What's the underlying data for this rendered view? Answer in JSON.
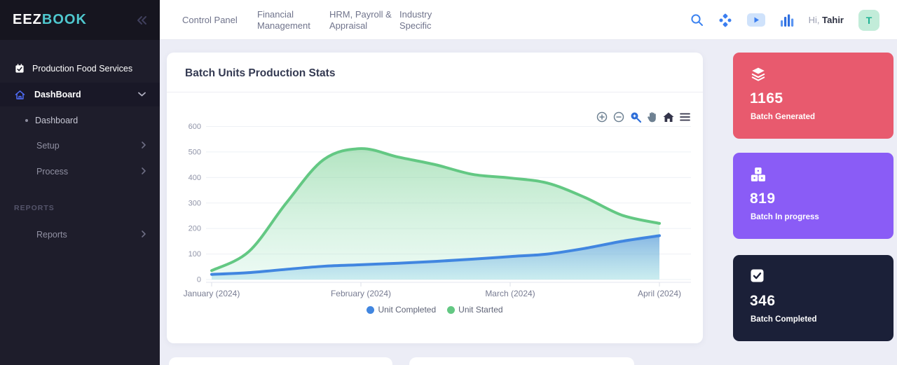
{
  "brand": {
    "name_primary": "EEZ",
    "name_accent": "BOOK",
    "accent_color": "#4fc8cf"
  },
  "sidebar": {
    "service_label": "Production Food Services",
    "menu": {
      "dashboard_parent": "DashBoard",
      "dashboard_child": "Dashboard",
      "setup": "Setup",
      "process": "Process",
      "section": "REPORTS",
      "reports": "Reports"
    }
  },
  "topbar": {
    "nav": [
      "Control Panel",
      "Financial Management",
      "HRM, Payroll & Appraisal",
      "Industry Specific"
    ],
    "greeting": "Hi,",
    "user": "Tahir",
    "avatar_initial": "T"
  },
  "chart_card": {
    "title": "Batch Units Production Stats"
  },
  "chart_data": {
    "type": "area",
    "title": "Batch Units Production Stats",
    "categories": [
      "January (2024)",
      "February (2024)",
      "March (2024)",
      "April (2024)"
    ],
    "category_positions": [
      0,
      1,
      2,
      3
    ],
    "x_unit": "month_index",
    "x": [
      0,
      0.25,
      0.5,
      0.75,
      1,
      1.25,
      1.5,
      1.75,
      2,
      2.25,
      2.5,
      2.75,
      3
    ],
    "series": [
      {
        "name": "Unit Completed",
        "color": "#4186e0",
        "fill_from": "rgba(65,134,224,0.55)",
        "fill_to": "rgba(152,216,233,0.40)",
        "values": [
          20,
          27,
          40,
          52,
          58,
          64,
          71,
          80,
          90,
          100,
          122,
          150,
          172
        ]
      },
      {
        "name": "Unit Started",
        "color": "#63c883",
        "fill_from": "rgba(104,202,132,0.50)",
        "fill_to": "rgba(188,238,216,0.28)",
        "values": [
          35,
          110,
          300,
          470,
          513,
          480,
          450,
          412,
          398,
          378,
          322,
          252,
          220
        ]
      }
    ],
    "ylim": [
      0,
      600
    ],
    "y_ticks": [
      0,
      100,
      200,
      300,
      400,
      500,
      600
    ],
    "grid": true,
    "legend_position": "bottom"
  },
  "stat_cards": [
    {
      "value": "1165",
      "label": "Batch Generated",
      "bg_color": "#e85a6e",
      "icon": "layers-icon"
    },
    {
      "value": "819",
      "label": "Batch In progress",
      "bg_color": "#8a5cf6",
      "icon": "dice-icon"
    },
    {
      "value": "346",
      "label": "Batch Completed",
      "bg_color": "#1b2038",
      "icon": "checkbox-icon"
    }
  ]
}
